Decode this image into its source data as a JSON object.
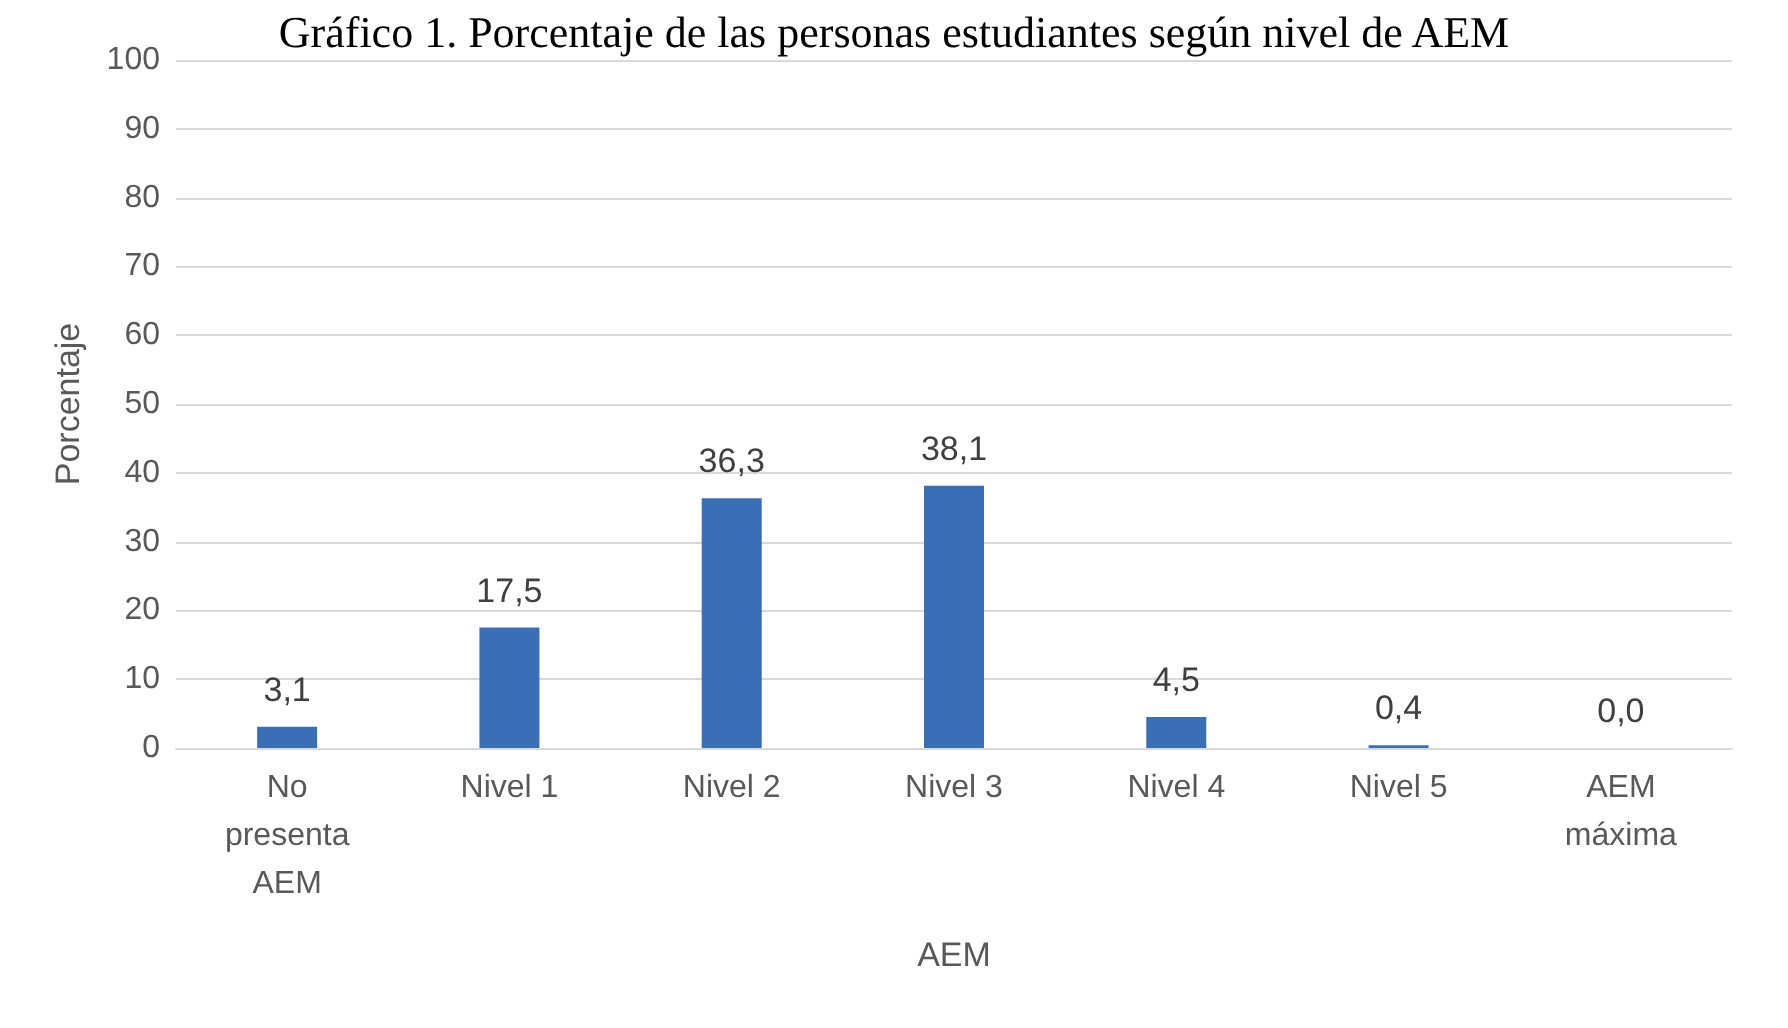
{
  "chart_data": {
    "type": "bar",
    "title": "Gráfico 1. Porcentaje de las personas estudiantes según nivel de AEM",
    "xlabel": "AEM",
    "ylabel": "Porcentaje",
    "categories": [
      "No\npresenta\nAEM",
      "Nivel 1",
      "Nivel 2",
      "Nivel 3",
      "Nivel 4",
      "Nivel 5",
      "AEM\nmáxima"
    ],
    "values": [
      3.1,
      17.5,
      36.3,
      38.1,
      4.5,
      0.4,
      0.0
    ],
    "value_labels": [
      "3,1",
      "17,5",
      "36,3",
      "38,1",
      "4,5",
      "0,4",
      "0,0"
    ],
    "color": "#3a6fb5",
    "ylim": [
      0,
      100
    ],
    "yticks": [
      0,
      10,
      20,
      30,
      40,
      50,
      60,
      70,
      80,
      90,
      100
    ],
    "grid": "y"
  }
}
